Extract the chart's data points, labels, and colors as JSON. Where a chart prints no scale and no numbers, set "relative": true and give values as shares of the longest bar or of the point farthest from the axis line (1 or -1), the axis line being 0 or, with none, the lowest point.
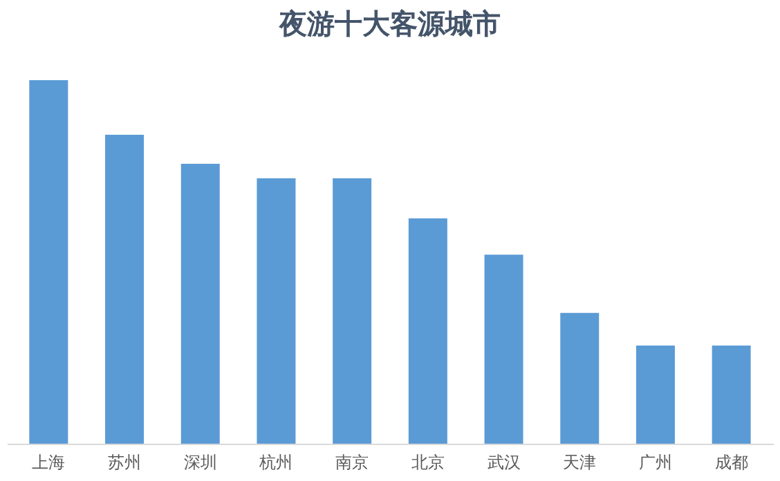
{
  "chart_data": {
    "type": "bar",
    "title": "夜游十大客源城市",
    "categories": [
      "上海",
      "苏州",
      "深圳",
      "杭州",
      "南京",
      "北京",
      "武汉",
      "天津",
      "广州",
      "成都"
    ],
    "values": [
      1,
      0.85,
      0.77,
      0.73,
      0.73,
      0.62,
      0.52,
      0.36,
      0.27,
      0.27
    ],
    "color": "#5b9bd5",
    "relative": true
  }
}
